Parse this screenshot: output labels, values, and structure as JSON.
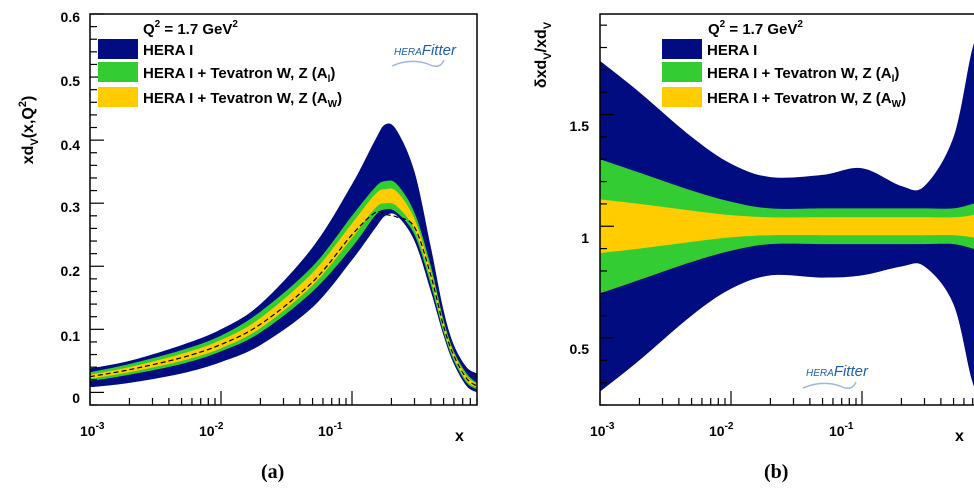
{
  "chart_data": [
    {
      "type": "area",
      "panel": "(a)",
      "xlabel": "x",
      "ylabel": "xd_V(x,Q^2)",
      "x_scale": "log",
      "xlim": [
        0.001,
        0.9
      ],
      "ylim": [
        -0.02,
        0.6
      ],
      "x_ticks": [
        "10^-3",
        "10^-2",
        "10^-1"
      ],
      "y_ticks": [
        "0",
        "0.1",
        "0.2",
        "0.3",
        "0.4",
        "0.5",
        "0.6"
      ],
      "annotation": "Q^2 = 1.7 GeV^2",
      "logo": "HERAFitter",
      "x": [
        0.001,
        0.002,
        0.005,
        0.01,
        0.02,
        0.05,
        0.1,
        0.15,
        0.18,
        0.22,
        0.3,
        0.4,
        0.5,
        0.6,
        0.75,
        0.9
      ],
      "series": [
        {
          "name": "HERA I",
          "color": "#000c7f",
          "lower": [
            0.008,
            0.015,
            0.03,
            0.048,
            0.075,
            0.135,
            0.21,
            0.26,
            0.28,
            0.28,
            0.24,
            0.16,
            0.09,
            0.045,
            0.01,
            0.0
          ],
          "upper": [
            0.038,
            0.05,
            0.075,
            0.1,
            0.14,
            0.23,
            0.33,
            0.4,
            0.425,
            0.415,
            0.35,
            0.23,
            0.13,
            0.075,
            0.04,
            0.03
          ]
        },
        {
          "name": "HERA I + Tevatron W, Z (A_l)",
          "color": "#33cc33",
          "lower": [
            0.018,
            0.028,
            0.045,
            0.065,
            0.095,
            0.16,
            0.23,
            0.28,
            0.29,
            0.285,
            0.25,
            0.17,
            0.095,
            0.05,
            0.015,
            0.005
          ],
          "upper": [
            0.032,
            0.045,
            0.067,
            0.09,
            0.128,
            0.2,
            0.28,
            0.325,
            0.335,
            0.33,
            0.285,
            0.2,
            0.115,
            0.065,
            0.03,
            0.015
          ]
        },
        {
          "name": "HERA I + Tevatron W, Z (A_W)",
          "color": "#ffcc00",
          "lower": [
            0.022,
            0.032,
            0.05,
            0.07,
            0.102,
            0.17,
            0.245,
            0.292,
            0.3,
            0.295,
            0.258,
            0.178,
            0.1,
            0.054,
            0.018,
            0.008
          ],
          "upper": [
            0.028,
            0.04,
            0.061,
            0.083,
            0.118,
            0.19,
            0.268,
            0.314,
            0.322,
            0.318,
            0.275,
            0.192,
            0.11,
            0.062,
            0.026,
            0.013
          ]
        }
      ],
      "dashed_line": [
        0.025,
        0.036,
        0.055,
        0.076,
        0.108,
        0.175,
        0.25,
        0.285,
        0.282,
        0.278,
        0.262,
        0.185,
        0.105,
        0.058,
        0.022,
        0.01
      ],
      "legend_placement": "top-left"
    },
    {
      "type": "area",
      "panel": "(b)",
      "xlabel": "x",
      "ylabel": "δxd_V/xd_V",
      "x_scale": "log",
      "xlim": [
        0.001,
        0.9
      ],
      "ylim": [
        0.2,
        1.95
      ],
      "x_ticks": [
        "10^-3",
        "10^-2",
        "10^-1"
      ],
      "y_ticks": [
        "0.5",
        "1",
        "1.5"
      ],
      "annotation": "Q^2 = 1.7 GeV^2",
      "logo": "HERAFitter",
      "x": [
        0.001,
        0.002,
        0.005,
        0.01,
        0.02,
        0.05,
        0.1,
        0.2,
        0.3,
        0.5,
        0.7,
        0.9
      ],
      "series": [
        {
          "name": "HERA I",
          "color": "#000c7f",
          "lower": [
            0.26,
            0.4,
            0.6,
            0.72,
            0.78,
            0.77,
            0.78,
            0.82,
            0.82,
            0.65,
            0.3,
            0.2
          ],
          "upper": [
            1.74,
            1.6,
            1.4,
            1.28,
            1.22,
            1.23,
            1.26,
            1.18,
            1.18,
            1.4,
            1.8,
            1.95
          ]
        },
        {
          "name": "HERA I + Tevatron W, Z (A_l)",
          "color": "#33cc33",
          "lower": [
            0.7,
            0.76,
            0.84,
            0.89,
            0.92,
            0.92,
            0.92,
            0.92,
            0.92,
            0.92,
            0.9,
            0.88
          ],
          "upper": [
            1.3,
            1.24,
            1.16,
            1.11,
            1.08,
            1.08,
            1.08,
            1.08,
            1.08,
            1.08,
            1.1,
            1.12
          ]
        },
        {
          "name": "HERA I + Tevatron W, Z (A_W)",
          "color": "#ffcc00",
          "lower": [
            0.88,
            0.9,
            0.93,
            0.95,
            0.96,
            0.96,
            0.96,
            0.96,
            0.96,
            0.96,
            0.95,
            0.93
          ],
          "upper": [
            1.12,
            1.1,
            1.07,
            1.05,
            1.04,
            1.04,
            1.04,
            1.04,
            1.04,
            1.04,
            1.05,
            1.07
          ]
        }
      ],
      "legend_placement": "top-left"
    }
  ],
  "text": {
    "legend_q2": "Q",
    "legend_q2_exp": "2",
    "legend_q2_rest": " = 1.7 GeV",
    "legend_gev_exp": "2",
    "legend_hera": "HERA I",
    "legend_al_main": "HERA I + Tevatron W, Z (A",
    "legend_al_sub": "l",
    "legend_aw_main": "HERA I + Tevatron W, Z (A",
    "legend_aw_sub": "W",
    "close_paren": ")",
    "x_axis_label": "x",
    "caption_a": "(a)",
    "caption_b": "(b)",
    "logo_hera": "HERA",
    "logo_fitter": "Fitter",
    "a_y_title_main": "xd",
    "a_y_title_sub": "V",
    "a_y_title_rest": "(x,Q",
    "a_y_title_exp": "2",
    "a_y_title_close": ")",
    "b_y_title_main": "δxd",
    "b_y_title_sub": "V",
    "b_y_title_slash": "/xd",
    "b_y_title_sub2": "V",
    "tick_base": "10",
    "tick_exp_3": "-3",
    "tick_exp_2": "-2",
    "tick_exp_1": "-1",
    "a_y_ticks": [
      "0",
      "0.1",
      "0.2",
      "0.3",
      "0.4",
      "0.5",
      "0.6"
    ],
    "b_y_ticks": [
      "0.5",
      "1",
      "1.5"
    ]
  }
}
